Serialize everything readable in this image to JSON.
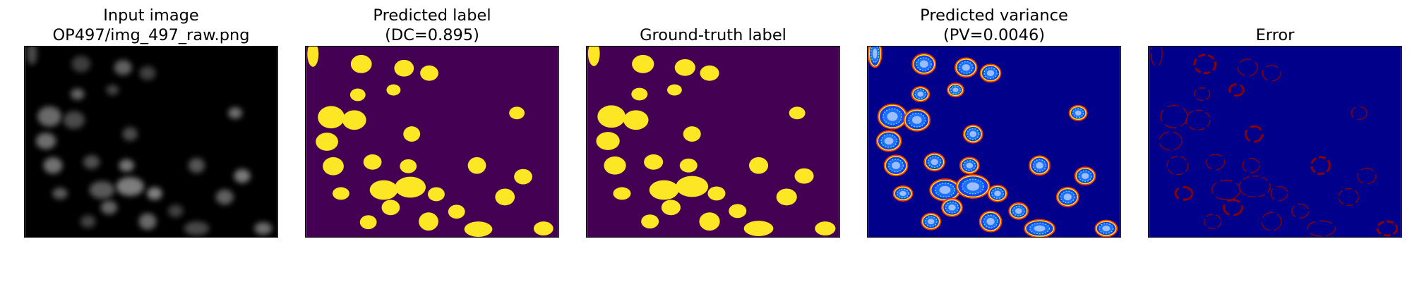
{
  "figure": {
    "panels": [
      {
        "id": "input",
        "title": "Input image\nOP497/img_497_raw.png"
      },
      {
        "id": "predicted",
        "title": "Predicted label\n(DC=0.895)"
      },
      {
        "id": "truth",
        "title": "Ground-truth label"
      },
      {
        "id": "variance",
        "title": "Predicted variance\n(PV=0.0046)"
      },
      {
        "id": "error",
        "title": "Error"
      }
    ],
    "colors": {
      "background_purple": "#440154",
      "label_yellow": "#fde725",
      "jet_blue": "#00008b",
      "error_red": "#8b0000",
      "input_background": "#000000"
    }
  }
}
